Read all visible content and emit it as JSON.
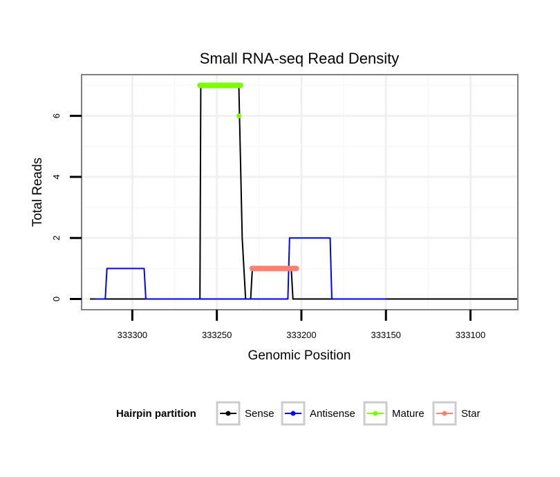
{
  "chart_data": {
    "type": "line",
    "title": "Small RNA-seq Read Density",
    "xlabel": "Genomic Position",
    "ylabel": "Total Reads",
    "x_reversed": true,
    "xlim": [
      333072,
      333330
    ],
    "ylim": [
      -0.35,
      7.35
    ],
    "xticks": [
      333300,
      333250,
      333200,
      333150,
      333100
    ],
    "xtick_labels": [
      "333300",
      "333250",
      "333200",
      "333150",
      "333100"
    ],
    "yticks": [
      0,
      2,
      4,
      6
    ],
    "ytick_labels": [
      "0",
      "2",
      "4",
      "6"
    ],
    "x_minor_gridlines": [
      333275,
      333225,
      333175,
      333125
    ],
    "y_minor_gridlines": [
      1,
      3,
      5,
      7
    ],
    "grid": true,
    "legend": {
      "title": "Hairpin partition",
      "position": "bottom",
      "entries": [
        {
          "name": "Sense",
          "color": "#000000"
        },
        {
          "name": "Antisense",
          "color": "#0000ff"
        },
        {
          "name": "Mature",
          "color": "#7cfc00"
        },
        {
          "name": "Star",
          "color": "#fa8072"
        }
      ]
    },
    "series": [
      {
        "name": "Sense",
        "color": "#000000",
        "style": "line",
        "points": [
          [
            333325,
            0
          ],
          [
            333260,
            0
          ],
          [
            333259.5,
            7
          ],
          [
            333237,
            7
          ],
          [
            333235,
            2
          ],
          [
            333233,
            0
          ],
          [
            333230,
            0
          ],
          [
            333229,
            1
          ],
          [
            333206,
            1
          ],
          [
            333205,
            0
          ],
          [
            333072,
            0
          ]
        ]
      },
      {
        "name": "Antisense",
        "color": "#0000ff",
        "style": "line",
        "points": [
          [
            333322,
            0
          ],
          [
            333316,
            0
          ],
          [
            333315,
            1
          ],
          [
            333293,
            1
          ],
          [
            333292,
            0
          ],
          [
            333208,
            0
          ],
          [
            333207,
            2
          ],
          [
            333183,
            2
          ],
          [
            333182,
            0
          ],
          [
            333150,
            0
          ]
        ]
      },
      {
        "name": "Mature",
        "color": "#7cfc00",
        "style": "thick",
        "points": [
          [
            333260,
            7
          ],
          [
            333236,
            7
          ]
        ],
        "extra_points": [
          [
            333237,
            6
          ]
        ]
      },
      {
        "name": "Star",
        "color": "#fa8072",
        "style": "thick",
        "points": [
          [
            333229,
            1
          ],
          [
            333203,
            1
          ]
        ]
      }
    ]
  }
}
